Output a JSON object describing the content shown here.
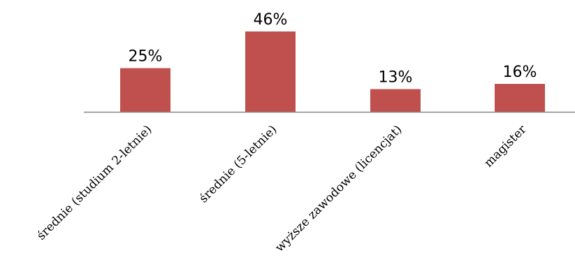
{
  "chart_data": {
    "type": "bar",
    "title": "",
    "xlabel": "",
    "ylabel": "",
    "categories": [
      "średnie (studium 2-letnie)",
      "średnie (5-letnie)",
      "wyższe zawodowe (licencjat)",
      "magister"
    ],
    "values": [
      25,
      46,
      13,
      16
    ],
    "data_labels": [
      "25%",
      "46%",
      "13%",
      "16%"
    ],
    "value_unit": "%",
    "ylim": [
      0,
      46
    ],
    "grid": false,
    "legend": "none",
    "bar_color": "#c0504d",
    "axis_color": "#868686"
  }
}
